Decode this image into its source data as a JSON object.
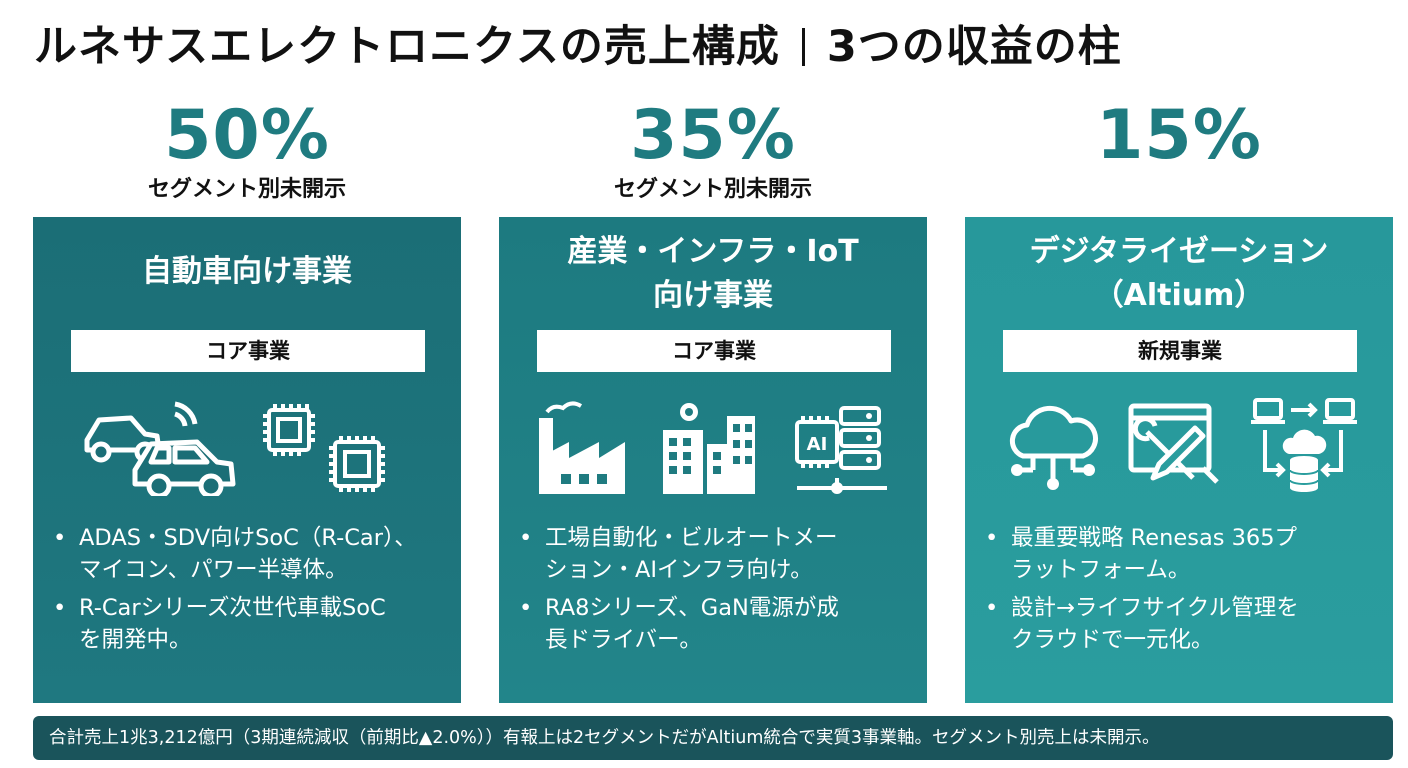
{
  "title": {
    "main": "ルネサスエレクトロニクスの売上構成",
    "sub": "3つの収益の柱"
  },
  "columns": [
    {
      "percent": "50%",
      "note": "セグメント別未開示",
      "title_line1": "自動車向け事業",
      "title_line2": "",
      "badge": "コア事業",
      "icons": [
        "connected-car-icon",
        "microchip-icon"
      ],
      "bullets": [
        "ADAS・SDV向けSoC（R-Car）、",
        "マイコン、パワー半導体。",
        "R-Carシリーズ次世代車載SoC",
        "を開発中。"
      ]
    },
    {
      "percent": "35%",
      "note": "セグメント別未開示",
      "title_line1": "産業・インフラ・IoT",
      "title_line2": "向け事業",
      "badge": "コア事業",
      "icons": [
        "factory-icon",
        "smart-building-icon",
        "ai-server-icon"
      ],
      "bullets": [
        "工場自動化・ビルオートメー",
        "ション・AIインフラ向け。",
        "RA8シリーズ、GaN電源が成",
        "長ドライバー。"
      ]
    },
    {
      "percent": "15%",
      "note": "",
      "title_line1": "デジタライゼーション",
      "title_line2": "（Altium）",
      "badge": "新規事業",
      "icons": [
        "cloud-network-icon",
        "design-tools-icon",
        "cloud-sync-icon"
      ],
      "bullets": [
        "最重要戦略 Renesas 365プ",
        "ラットフォーム。",
        "設計→ライフサイクル管理を",
        "クラウドで一元化。"
      ]
    }
  ],
  "footer": {
    "text": "合計売上1兆3,212億円（3期連続減収（前期比▲2.0%））有報上は2セグメントだがAltium統合で実質3事業軸。セグメント別売上は未開示。"
  },
  "colors": {
    "accent": "#1f7b80",
    "card1": "#1b6e76",
    "card2": "#1f8085",
    "card3": "#2a9d9e",
    "footer": "#1a545b"
  }
}
